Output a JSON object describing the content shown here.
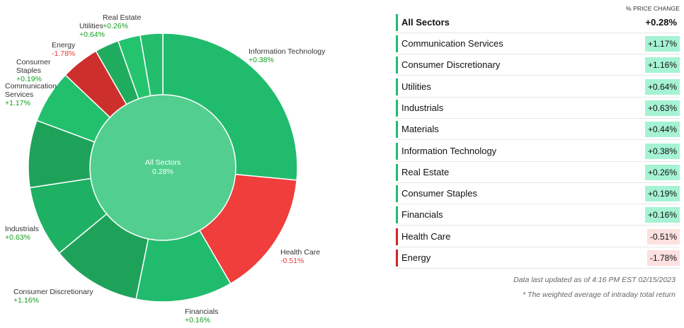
{
  "chart_data": {
    "type": "pie",
    "center": {
      "label": "All Sectors",
      "value": "0.28%"
    },
    "slices": [
      {
        "name": "Information Technology",
        "label": "Information Technology",
        "change": "+0.38%",
        "weight": 26.5,
        "color": "#21bb6d"
      },
      {
        "name": "Health Care",
        "label": "Health Care",
        "change": "-0.51%",
        "weight": 15.1,
        "color": "#ef3e3c"
      },
      {
        "name": "Financials",
        "label": "Financials",
        "change": "+0.16%",
        "weight": 11.6,
        "color": "#21bb6d"
      },
      {
        "name": "Consumer Discretionary",
        "label": "Consumer Discretionary",
        "change": "+1.16%",
        "weight": 10.8,
        "color": "#1ea25a"
      },
      {
        "name": "Industrials",
        "label": "Industrials",
        "change": "+0.63%",
        "weight": 8.6,
        "color": "#1fb163"
      },
      {
        "name": "Communication Services",
        "label": "Communication\nServices",
        "change": "+1.17%",
        "weight": 8.1,
        "color": "#1ea25a"
      },
      {
        "name": "Consumer Staples",
        "label": "Consumer\nStaples",
        "change": "+0.19%",
        "weight": 6.4,
        "color": "#22c06d"
      },
      {
        "name": "Energy",
        "label": "Energy",
        "change": "-1.78%",
        "weight": 4.6,
        "color": "#cd2f2c"
      },
      {
        "name": "Utilities",
        "label": "Utilities",
        "change": "+0.64%",
        "weight": 2.9,
        "color": "#1fac5f"
      },
      {
        "name": "Real Estate",
        "label": "Real Estate",
        "change": "+0.26%",
        "weight": 2.7,
        "color": "#24c46f"
      },
      {
        "name": "Materials",
        "label": "",
        "change": "",
        "weight": 2.7,
        "color": "#23bd6c"
      }
    ],
    "center_color": "#52cf8f"
  },
  "table": {
    "header": "% PRICE CHANGE",
    "total": {
      "name": "All Sectors",
      "value": "+0.28%"
    },
    "rows": [
      {
        "name": "Communication Services",
        "value": "+1.17%",
        "dir": "up"
      },
      {
        "name": "Consumer Discretionary",
        "value": "+1.16%",
        "dir": "up"
      },
      {
        "name": "Utilities",
        "value": "+0.64%",
        "dir": "up"
      },
      {
        "name": "Industrials",
        "value": "+0.63%",
        "dir": "up"
      },
      {
        "name": "Materials",
        "value": "+0.44%",
        "dir": "up"
      },
      {
        "name": "Information Technology",
        "value": "+0.38%",
        "dir": "up"
      },
      {
        "name": "Real Estate",
        "value": "+0.26%",
        "dir": "up"
      },
      {
        "name": "Consumer Staples",
        "value": "+0.19%",
        "dir": "up"
      },
      {
        "name": "Financials",
        "value": "+0.16%",
        "dir": "up"
      },
      {
        "name": "Health Care",
        "value": "-0.51%",
        "dir": "down"
      },
      {
        "name": "Energy",
        "value": "-1.78%",
        "dir": "down"
      }
    ],
    "colors": {
      "up_bar": "#21bb6d",
      "down_bar": "#c62828",
      "up_bg": "#a6f3d4",
      "down_bg": "#fde0e0"
    }
  },
  "footnotes": {
    "updated": "Data last updated as of 4:16 PM EST 02/15/2023",
    "note": "* The weighted average of intraday total return"
  }
}
